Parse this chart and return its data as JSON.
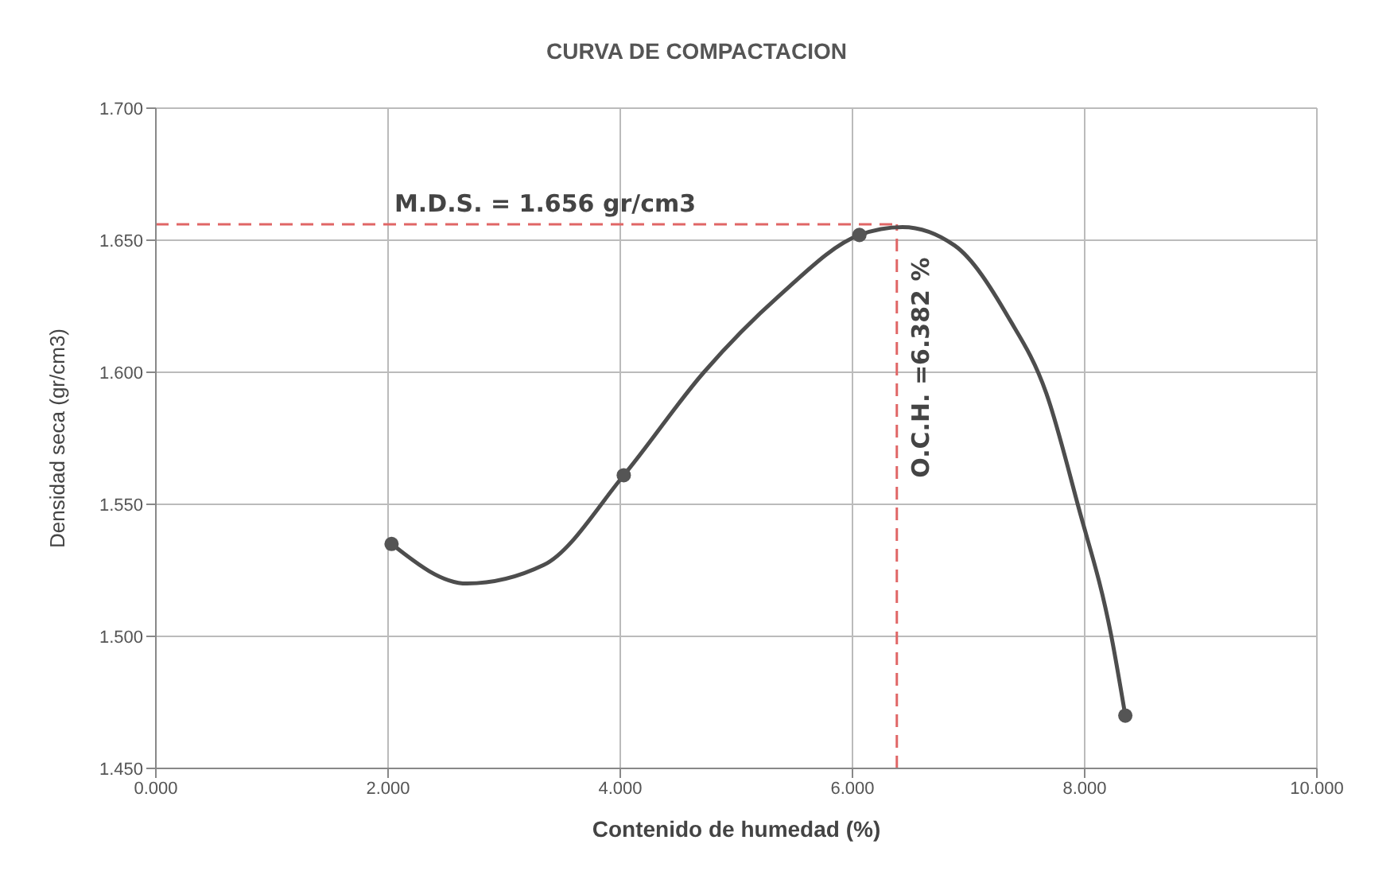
{
  "chart_data": {
    "type": "line",
    "title": "CURVA DE COMPACTACION",
    "xlabel": "Contenido de humedad (%)",
    "ylabel": "Densidad seca (gr/cm3)",
    "xlim": [
      0,
      10
    ],
    "xticks": [
      {
        "value": 0,
        "label": "0.000"
      },
      {
        "value": 2,
        "label": "2.000"
      },
      {
        "value": 4,
        "label": "4.000"
      },
      {
        "value": 6,
        "label": "6.000"
      },
      {
        "value": 8,
        "label": "8.000"
      },
      {
        "value": 10,
        "label": "10.000"
      }
    ],
    "ylim": [
      1.45,
      1.7
    ],
    "yticks": [
      {
        "value": 1.45,
        "label": "1.450"
      },
      {
        "value": 1.5,
        "label": "1.500"
      },
      {
        "value": 1.55,
        "label": "1.550"
      },
      {
        "value": 1.6,
        "label": "1.600"
      },
      {
        "value": 1.65,
        "label": "1.650"
      },
      {
        "value": 1.7,
        "label": "1.700"
      }
    ],
    "grid": true,
    "series": [
      {
        "marker": "none",
        "color": "#4d4d4d",
        "x": [
          2.03,
          2.68,
          3.34,
          4.03,
          4.72,
          5.37,
          6.06,
          6.43,
          6.88,
          7.34,
          7.67,
          7.94,
          8.23,
          8.35
        ],
        "values": [
          1.535,
          1.52,
          1.527,
          1.561,
          1.6,
          1.629,
          1.652,
          1.655,
          1.648,
          1.621,
          1.592,
          1.55,
          1.5,
          1.47
        ]
      },
      {
        "type": "scatter",
        "marker": "circle",
        "color": "#555555",
        "x": [
          2.03,
          4.03,
          6.06,
          8.35
        ],
        "values": [
          1.535,
          1.561,
          1.652,
          1.47
        ]
      }
    ],
    "ref_lines": [
      {
        "axis": "y",
        "value": 1.656,
        "label": "M.D.S. = 1.656 gr/cm3",
        "color": "#e06666",
        "line_style": "dashed"
      },
      {
        "axis": "x",
        "value": 6.382,
        "label": "O.C.H. =6.382 %",
        "color": "#e06666",
        "line_style": "dashed"
      }
    ]
  }
}
